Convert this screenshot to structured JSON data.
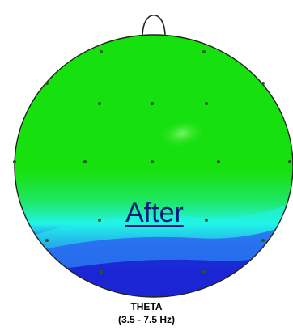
{
  "headmap": {
    "overlay_label": "After",
    "band_name": "THETA",
    "band_range": "(3.5 - 7.5 Hz)",
    "colors": {
      "background": "#ffffff",
      "scalp_green": "#17e00f",
      "highlight_green": "#5cf048",
      "cyan": "#22f4e8",
      "blue": "#2a5cf0",
      "deep_blue": "#1b1fd0",
      "electrode": "#1f5a1a",
      "outline": "#222222"
    }
  }
}
